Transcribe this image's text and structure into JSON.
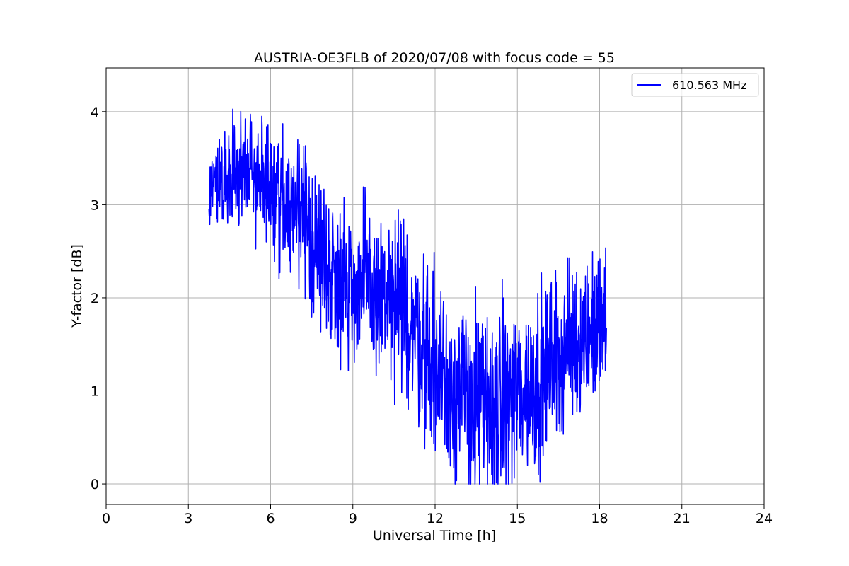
{
  "chart_data": {
    "type": "line",
    "title": "AUSTRIA-OE3FLB of 2020/07/08 with focus code = 55",
    "xlabel": "Universal Time [h]",
    "ylabel": "Y-factor [dB]",
    "xlim": [
      0,
      24
    ],
    "ylim": [
      -0.22,
      4.47
    ],
    "xticks": [
      0,
      3,
      6,
      9,
      12,
      15,
      18,
      21,
      24
    ],
    "xtick_labels": [
      "0",
      "3",
      "6",
      "9",
      "12",
      "15",
      "18",
      "21",
      "24"
    ],
    "yticks": [
      0,
      1,
      2,
      3,
      4
    ],
    "ytick_labels": [
      "0",
      "1",
      "2",
      "3",
      "4"
    ],
    "grid": true,
    "legend": {
      "placement": "upper-right"
    },
    "series": [
      {
        "name": "610.563 MHz",
        "color": "#0000ff",
        "x_start": 3.75,
        "x_end": 18.25,
        "trend": [
          [
            3.75,
            3.15
          ],
          [
            4.5,
            3.35
          ],
          [
            5.0,
            3.4
          ],
          [
            5.75,
            3.3
          ],
          [
            6.5,
            3.0
          ],
          [
            7.0,
            2.9
          ],
          [
            7.5,
            2.6
          ],
          [
            8.0,
            2.35
          ],
          [
            9.0,
            2.15
          ],
          [
            10.0,
            2.05
          ],
          [
            11.0,
            1.8
          ],
          [
            12.0,
            1.3
          ],
          [
            12.5,
            1.1
          ],
          [
            13.0,
            0.95
          ],
          [
            13.5,
            0.85
          ],
          [
            14.0,
            0.75
          ],
          [
            14.5,
            0.85
          ],
          [
            15.0,
            1.0
          ],
          [
            15.5,
            1.05
          ],
          [
            16.0,
            1.2
          ],
          [
            16.5,
            1.4
          ],
          [
            17.0,
            1.55
          ],
          [
            17.5,
            1.6
          ],
          [
            18.25,
            1.7
          ]
        ],
        "noise_band": [
          [
            3.75,
            0.8
          ],
          [
            6.5,
            1.2
          ],
          [
            9.0,
            1.4
          ],
          [
            12.0,
            1.6
          ],
          [
            14.0,
            1.8
          ],
          [
            16.0,
            1.5
          ],
          [
            18.25,
            1.3
          ]
        ]
      }
    ]
  }
}
